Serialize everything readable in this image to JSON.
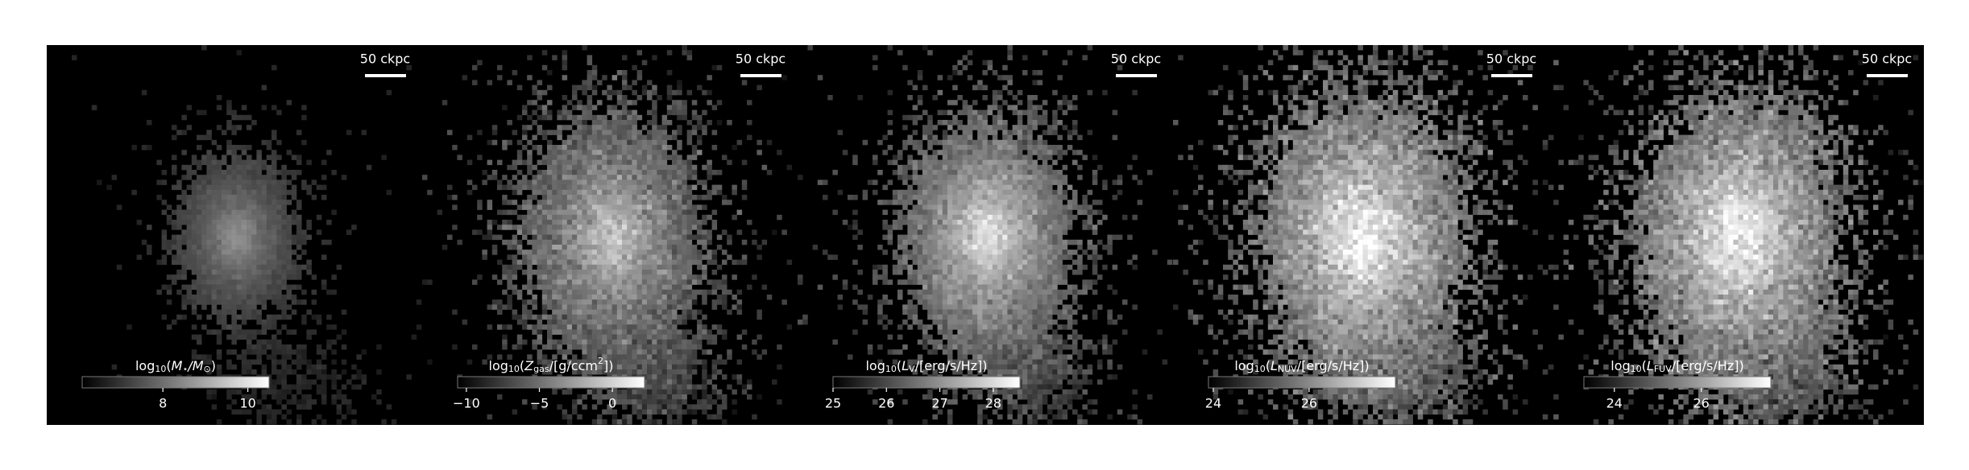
{
  "chart_data": [
    {
      "type": "image",
      "scale_bar": "50 ckpc",
      "colorbar_label": [
        {
          "text": "log"
        },
        {
          "text": "10",
          "script": "sub"
        },
        {
          "text": "("
        },
        {
          "text": "M"
        },
        {
          "text": "⋆",
          "script": "sub"
        },
        {
          "text": "/M"
        },
        {
          "text": "⊙",
          "script": "sub"
        },
        {
          "text": ")"
        }
      ],
      "clim": [
        6.1,
        10.5
      ],
      "cticks": [
        8,
        10
      ],
      "colormap": [
        "#000000",
        "#ffffff"
      ]
    },
    {
      "type": "image",
      "scale_bar": "50 ckpc",
      "colorbar_label": [
        {
          "text": "log"
        },
        {
          "text": "10",
          "script": "sub"
        },
        {
          "text": "("
        },
        {
          "text": "Z"
        },
        {
          "text": "gas",
          "script": "sub"
        },
        {
          "text": "/[g/ccm"
        },
        {
          "text": "2",
          "script": "sup"
        },
        {
          "text": "])"
        }
      ],
      "clim": [
        -10.6,
        2.2
      ],
      "cticks": [
        {
          "value": -10,
          "label": "−10"
        },
        {
          "value": -5,
          "label": "−5"
        },
        0
      ],
      "colormap": [
        "#000000",
        "#ffffff"
      ]
    },
    {
      "type": "image",
      "scale_bar": "50 ckpc",
      "colorbar_label": [
        {
          "text": "log"
        },
        {
          "text": "10",
          "script": "sub"
        },
        {
          "text": "("
        },
        {
          "text": "L"
        },
        {
          "text": "V",
          "script": "sub"
        },
        {
          "text": "/[erg/s/Hz])"
        }
      ],
      "clim": [
        25.0,
        28.5
      ],
      "cticks": [
        25,
        26,
        27,
        28
      ],
      "colormap": [
        "#000000",
        "#ffffff"
      ]
    },
    {
      "type": "image",
      "scale_bar": "50 ckpc",
      "colorbar_label": [
        {
          "text": "log"
        },
        {
          "text": "10",
          "script": "sub"
        },
        {
          "text": "("
        },
        {
          "text": "L"
        },
        {
          "text": "NUV",
          "script": "sub"
        },
        {
          "text": "/[erg/s/Hz])"
        }
      ],
      "clim": [
        23.9,
        27.8
      ],
      "cticks": [
        24,
        26
      ],
      "colormap": [
        "#000000",
        "#ffffff"
      ]
    },
    {
      "type": "image",
      "scale_bar": "50 ckpc",
      "colorbar_label": [
        {
          "text": "log"
        },
        {
          "text": "10",
          "script": "sub"
        },
        {
          "text": "("
        },
        {
          "text": "L"
        },
        {
          "text": "FUV",
          "script": "sub"
        },
        {
          "text": "/[erg/s/Hz])"
        }
      ],
      "clim": [
        23.3,
        27.6
      ],
      "cticks": [
        24,
        26
      ],
      "colormap": [
        "#000000",
        "#ffffff"
      ]
    }
  ]
}
